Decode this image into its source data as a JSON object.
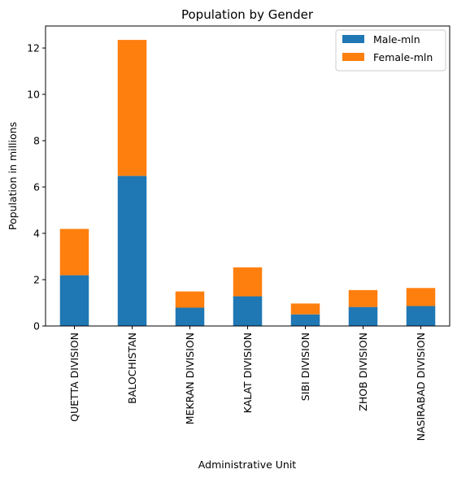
{
  "chart_data": {
    "type": "bar",
    "stacked": true,
    "title": "Population by Gender",
    "xlabel": "Administrative Unit",
    "ylabel": "Population in millions",
    "categories": [
      "QUETTA DIVISION",
      "BALOCHISTAN",
      "MEKRAN DIVISION",
      "KALAT DIVISION",
      "SIBI DIVISION",
      "ZHOB DIVISION",
      "NASIRABAD DIVISION"
    ],
    "series": [
      {
        "name": "Male-mln",
        "color": "#1f77b4",
        "values": [
          2.19,
          6.48,
          0.79,
          1.28,
          0.5,
          0.82,
          0.86
        ]
      },
      {
        "name": "Female-mln",
        "color": "#ff7f0e",
        "values": [
          2.0,
          5.87,
          0.7,
          1.25,
          0.47,
          0.73,
          0.78
        ]
      }
    ],
    "ylim": [
      0,
      12.95
    ],
    "yticks": [
      0,
      2,
      4,
      6,
      8,
      10,
      12
    ],
    "grid": false,
    "legend": "top-right"
  }
}
